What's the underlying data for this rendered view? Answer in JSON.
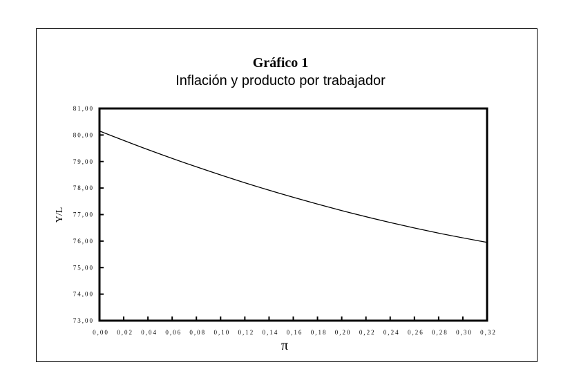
{
  "chart_data": {
    "type": "line",
    "title": "Gráfico 1",
    "subtitle": "Inflación y producto por trabajador",
    "xlabel": "π",
    "ylabel": "Y/L",
    "xlim": [
      0,
      0.32
    ],
    "ylim": [
      73,
      81
    ],
    "xticks": [
      "0,00",
      "0,02",
      "0,04",
      "0,06",
      "0,08",
      "0,10",
      "0,12",
      "0,14",
      "0,16",
      "0,18",
      "0,20",
      "0,22",
      "0,24",
      "0,26",
      "0,28",
      "0,30",
      "0,32"
    ],
    "yticks": [
      "73,00",
      "74,00",
      "75,00",
      "76,00",
      "77,00",
      "78,00",
      "79,00",
      "80,00",
      "81,00"
    ],
    "grid": false,
    "series": [
      {
        "x": [
          0,
          0.04,
          0.08,
          0.12,
          0.16,
          0.2,
          0.24,
          0.28,
          0.32
        ],
        "y": [
          80.15,
          79.45,
          78.8,
          78.2,
          77.65,
          77.15,
          76.7,
          76.3,
          75.95
        ]
      }
    ],
    "line_color": "#000000"
  }
}
